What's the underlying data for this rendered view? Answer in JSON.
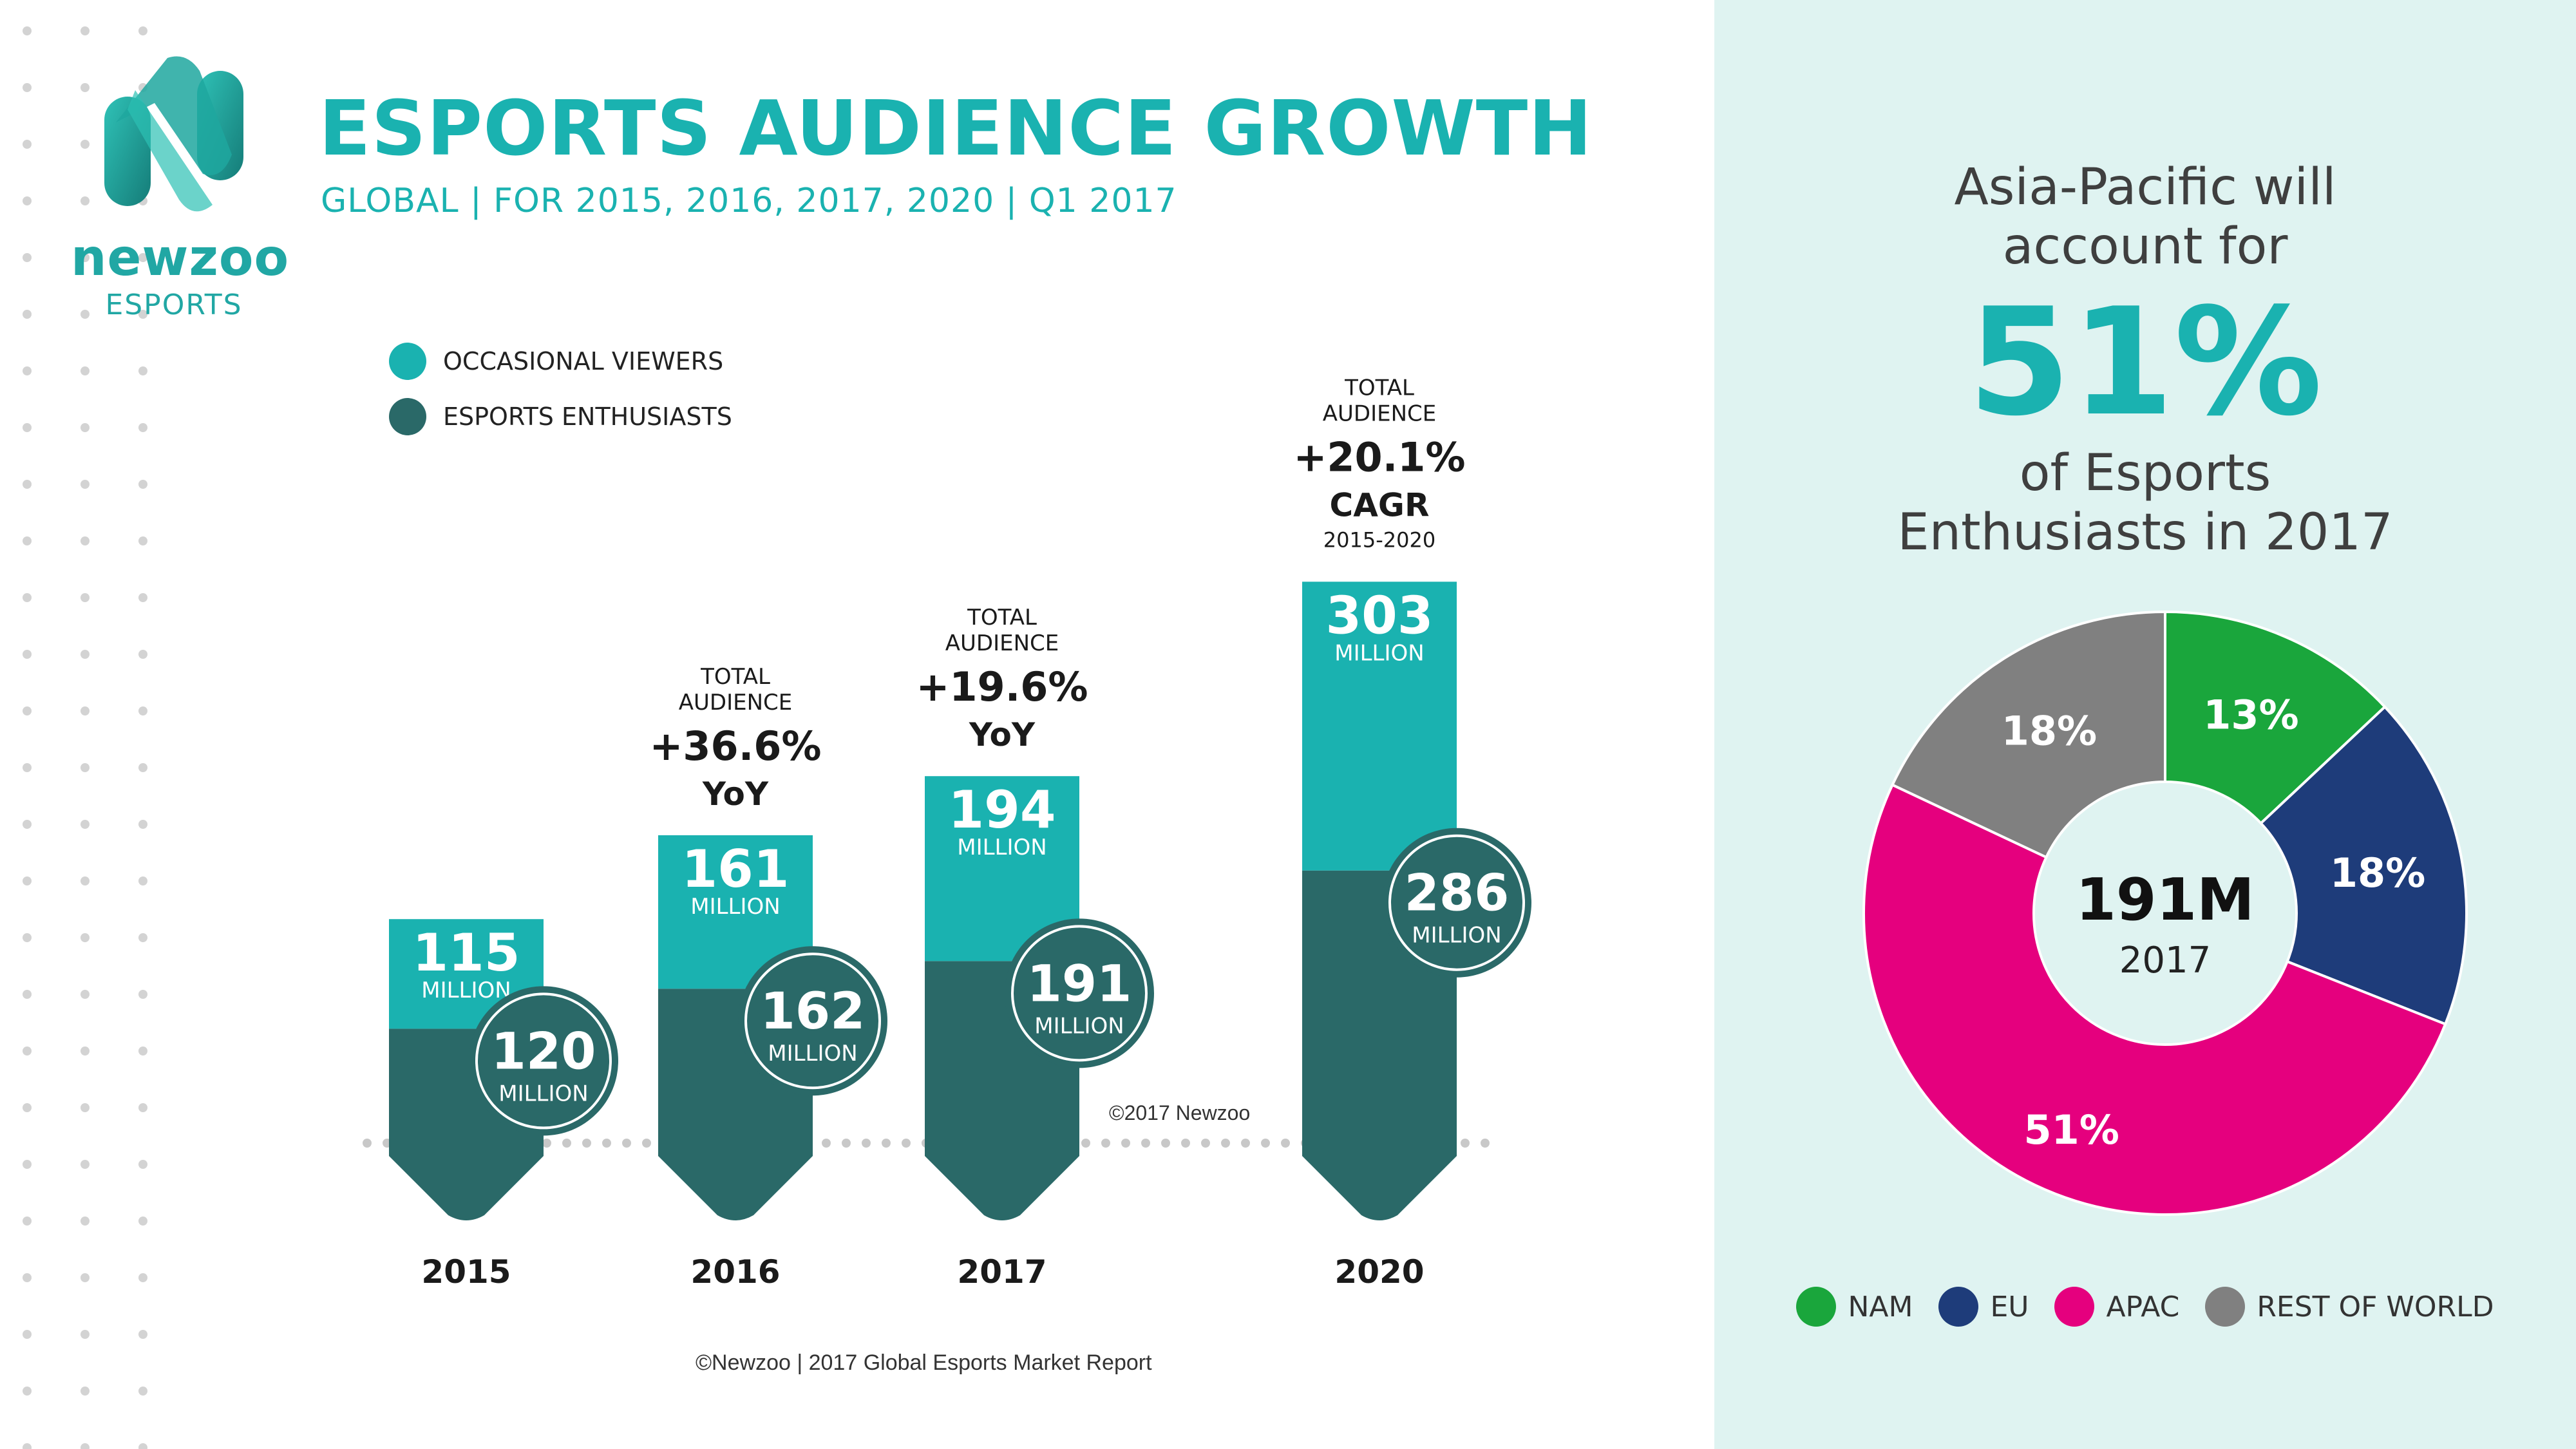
{
  "brand": {
    "logo_word": "newzoo",
    "logo_sub": "ESPORTS"
  },
  "header": {
    "title": "ESPORTS AUDIENCE GROWTH",
    "subtitle": "GLOBAL | FOR 2015, 2016, 2017, 2020 | Q1 2017"
  },
  "colors": {
    "occasional": "#1ab2b0",
    "enthusiasts": "#2a6968",
    "nam": "#1aa63c",
    "eu": "#1e3c7a",
    "apac": "#e5007e",
    "row": "#808080"
  },
  "chart_data": [
    {
      "type": "bar",
      "stacked": true,
      "categories": [
        "2015",
        "2016",
        "2017",
        "2020"
      ],
      "series": [
        {
          "name": "ESPORTS ENTHUSIASTS",
          "values": [
            120,
            162,
            191,
            286
          ],
          "unit": "MILLION"
        },
        {
          "name": "OCCASIONAL VIEWERS",
          "values": [
            115,
            161,
            194,
            303
          ],
          "unit": "MILLION"
        }
      ],
      "unit_label": "MILLION",
      "growth_annotations": [
        {
          "category": "2016",
          "top": "TOTAL AUDIENCE",
          "value": "+36.6%",
          "label": "YoY",
          "sub": ""
        },
        {
          "category": "2017",
          "top": "TOTAL AUDIENCE",
          "value": "+19.6%",
          "label": "YoY",
          "sub": ""
        },
        {
          "category": "2020",
          "top": "TOTAL AUDIENCE",
          "value": "+20.1%",
          "label": "CAGR",
          "sub": "2015-2020"
        }
      ],
      "legend": [
        "OCCASIONAL VIEWERS",
        "ESPORTS ENTHUSIASTS"
      ],
      "legend_position": "top-left",
      "copyright": "©2017 Newzoo",
      "source": "©Newzoo | 2017 Global Esports Market Report"
    },
    {
      "type": "pie",
      "donut": true,
      "labels": [
        "NAM",
        "EU",
        "APAC",
        "REST OF WORLD"
      ],
      "values": [
        13,
        18,
        51,
        18
      ],
      "center_value": "191M",
      "center_label": "2017",
      "legend_position": "bottom"
    }
  ],
  "callout": {
    "line1": "Asia-Pacific will",
    "line2": "account for",
    "big": "51%",
    "line3": "of Esports",
    "line4": "Enthusiasts in 2017"
  }
}
